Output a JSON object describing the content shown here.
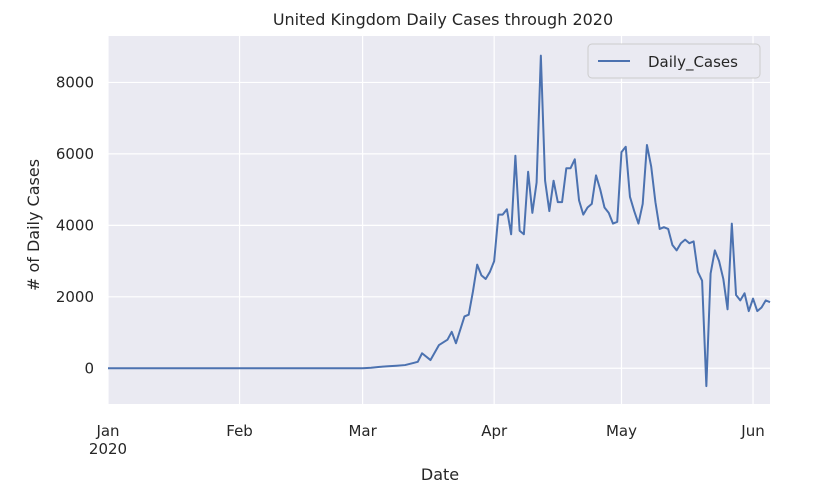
{
  "chart_data": {
    "type": "line",
    "title": "United Kingdom Daily Cases through 2020",
    "xlabel": "Date",
    "ylabel": "# of Daily Cases",
    "xlim": [
      "2020-01-01",
      "2020-06-05"
    ],
    "ylim": [
      -1000,
      9300
    ],
    "grid": true,
    "background": "#eaeaf2",
    "legend_position": "upper right",
    "x_ticks": [
      {
        "date": "2020-01-01",
        "label": "Jan",
        "sublabel": "2020"
      },
      {
        "date": "2020-02-01",
        "label": "Feb",
        "sublabel": ""
      },
      {
        "date": "2020-03-01",
        "label": "Mar",
        "sublabel": ""
      },
      {
        "date": "2020-04-01",
        "label": "Apr",
        "sublabel": ""
      },
      {
        "date": "2020-05-01",
        "label": "May",
        "sublabel": ""
      },
      {
        "date": "2020-06-01",
        "label": "Jun",
        "sublabel": ""
      }
    ],
    "y_ticks": [
      0,
      2000,
      4000,
      6000,
      8000
    ],
    "series": [
      {
        "name": "Daily_Cases",
        "color": "#4c72b0",
        "points": [
          [
            "2020-01-01",
            0
          ],
          [
            "2020-03-01",
            0
          ],
          [
            "2020-03-03",
            15
          ],
          [
            "2020-03-05",
            40
          ],
          [
            "2020-03-07",
            55
          ],
          [
            "2020-03-09",
            70
          ],
          [
            "2020-03-11",
            90
          ],
          [
            "2020-03-13",
            150
          ],
          [
            "2020-03-14",
            180
          ],
          [
            "2020-03-15",
            420
          ],
          [
            "2020-03-17",
            230
          ],
          [
            "2020-03-19",
            650
          ],
          [
            "2020-03-21",
            800
          ],
          [
            "2020-03-22",
            1020
          ],
          [
            "2020-03-23",
            700
          ],
          [
            "2020-03-25",
            1450
          ],
          [
            "2020-03-26",
            1500
          ],
          [
            "2020-03-27",
            2150
          ],
          [
            "2020-03-28",
            2900
          ],
          [
            "2020-03-29",
            2600
          ],
          [
            "2020-03-30",
            2500
          ],
          [
            "2020-03-31",
            2700
          ],
          [
            "2020-04-01",
            3000
          ],
          [
            "2020-04-02",
            4300
          ],
          [
            "2020-04-03",
            4300
          ],
          [
            "2020-04-04",
            4450
          ],
          [
            "2020-04-05",
            3750
          ],
          [
            "2020-04-06",
            5950
          ],
          [
            "2020-04-07",
            3850
          ],
          [
            "2020-04-08",
            3750
          ],
          [
            "2020-04-09",
            5500
          ],
          [
            "2020-04-10",
            4350
          ],
          [
            "2020-04-11",
            5200
          ],
          [
            "2020-04-12",
            8750
          ],
          [
            "2020-04-13",
            5250
          ],
          [
            "2020-04-14",
            4400
          ],
          [
            "2020-04-15",
            5250
          ],
          [
            "2020-04-16",
            4650
          ],
          [
            "2020-04-17",
            4650
          ],
          [
            "2020-04-18",
            5600
          ],
          [
            "2020-04-19",
            5600
          ],
          [
            "2020-04-20",
            5850
          ],
          [
            "2020-04-21",
            4700
          ],
          [
            "2020-04-22",
            4300
          ],
          [
            "2020-04-23",
            4500
          ],
          [
            "2020-04-24",
            4600
          ],
          [
            "2020-04-25",
            5400
          ],
          [
            "2020-04-26",
            5000
          ],
          [
            "2020-04-27",
            4500
          ],
          [
            "2020-04-28",
            4350
          ],
          [
            "2020-04-29",
            4050
          ],
          [
            "2020-04-30",
            4100
          ],
          [
            "2020-05-01",
            6050
          ],
          [
            "2020-05-02",
            6200
          ],
          [
            "2020-05-03",
            4800
          ],
          [
            "2020-05-04",
            4400
          ],
          [
            "2020-05-05",
            4050
          ],
          [
            "2020-05-06",
            4600
          ],
          [
            "2020-05-07",
            6250
          ],
          [
            "2020-05-08",
            5650
          ],
          [
            "2020-05-09",
            4650
          ],
          [
            "2020-05-10",
            3900
          ],
          [
            "2020-05-11",
            3950
          ],
          [
            "2020-05-12",
            3900
          ],
          [
            "2020-05-13",
            3450
          ],
          [
            "2020-05-14",
            3300
          ],
          [
            "2020-05-15",
            3500
          ],
          [
            "2020-05-16",
            3600
          ],
          [
            "2020-05-17",
            3500
          ],
          [
            "2020-05-18",
            3550
          ],
          [
            "2020-05-19",
            2700
          ],
          [
            "2020-05-20",
            2450
          ],
          [
            "2020-05-21",
            -500
          ],
          [
            "2020-05-22",
            2650
          ],
          [
            "2020-05-23",
            3300
          ],
          [
            "2020-05-24",
            3000
          ],
          [
            "2020-05-25",
            2500
          ],
          [
            "2020-05-26",
            1650
          ],
          [
            "2020-05-27",
            4050
          ],
          [
            "2020-05-28",
            2050
          ],
          [
            "2020-05-29",
            1900
          ],
          [
            "2020-05-30",
            2100
          ],
          [
            "2020-05-31",
            1600
          ],
          [
            "2020-06-01",
            1950
          ],
          [
            "2020-06-02",
            1600
          ],
          [
            "2020-06-03",
            1700
          ],
          [
            "2020-06-04",
            1900
          ],
          [
            "2020-06-05",
            1850
          ]
        ]
      }
    ]
  }
}
